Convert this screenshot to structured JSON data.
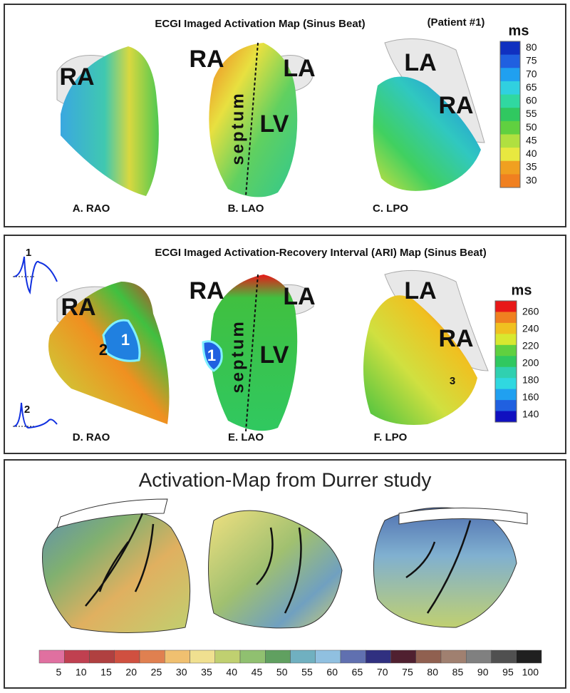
{
  "panels": [
    {
      "title": "ECGI Imaged Activation Map (Sinus Beat)",
      "note": "(Patient #1)",
      "colorbar": {
        "unit": "ms",
        "labels": [
          80,
          75,
          70,
          65,
          60,
          55,
          50,
          45,
          40,
          35,
          30
        ]
      },
      "views": [
        {
          "caption": "A.  RAO",
          "labels": [
            "RA"
          ]
        },
        {
          "caption": "B. LAO",
          "labels": [
            "RA",
            "LA",
            "LV",
            "septum"
          ]
        },
        {
          "caption": "C. LPO",
          "labels": [
            "LA",
            "RA"
          ]
        }
      ]
    },
    {
      "title": "ECGI Imaged Activation-Recovery Interval (ARI) Map (Sinus Beat)",
      "colorbar": {
        "unit": "ms",
        "labels": [
          260,
          240,
          220,
          200,
          180,
          160,
          140
        ]
      },
      "traces": [
        "1",
        "2"
      ],
      "views": [
        {
          "caption": "D.  RAO",
          "labels": [
            "RA",
            "2",
            "1"
          ]
        },
        {
          "caption": "E. LAO",
          "labels": [
            "RA",
            "LA",
            "LV",
            "septum",
            "1"
          ]
        },
        {
          "caption": "F. LPO",
          "labels": [
            "LA",
            "RA",
            "3"
          ]
        }
      ]
    },
    {
      "title": "Activation-Map from Durrer study",
      "scale": [
        5,
        10,
        15,
        20,
        25,
        30,
        35,
        40,
        45,
        50,
        55,
        60,
        65,
        70,
        75,
        80,
        85,
        90,
        95,
        100
      ]
    }
  ]
}
